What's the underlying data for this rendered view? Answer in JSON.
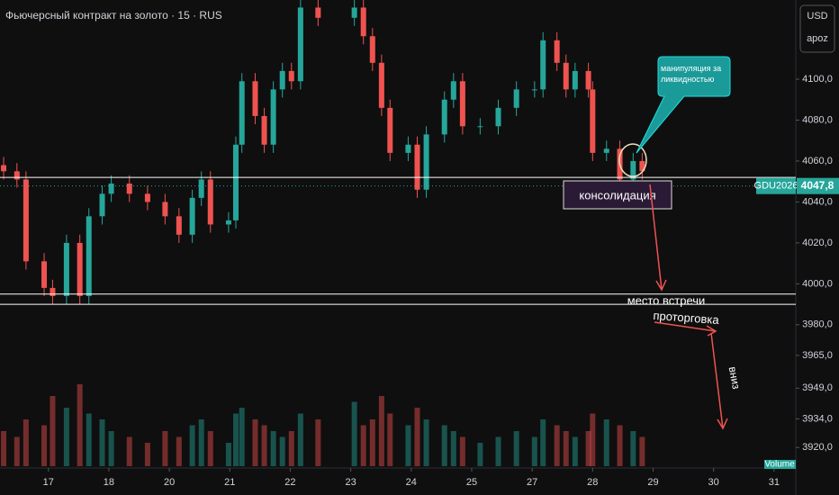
{
  "chart_data": {
    "type": "candlestick",
    "title": "Фьючерсный контракт на золото · 15 · RUS",
    "currency": "USD",
    "scale_mode": "apoz",
    "volume_label": "Volume",
    "symbol": "GDU2026",
    "last_price": {
      "value": 4047.8,
      "label": "4047,8"
    },
    "up_color": "#26a69a",
    "down_color": "#ef5350",
    "xlim": [
      -0.8,
      12.33
    ],
    "ylim": [
      3910,
      4138.7
    ],
    "vlim": [
      0,
      100
    ],
    "xticks": [
      {
        "value": 0,
        "label": "17"
      },
      {
        "value": 1,
        "label": "18"
      },
      {
        "value": 2,
        "label": "20"
      },
      {
        "value": 3,
        "label": "21"
      },
      {
        "value": 4,
        "label": "22"
      },
      {
        "value": 5,
        "label": "23"
      },
      {
        "value": 6,
        "label": "24"
      },
      {
        "value": 7,
        "label": "25"
      },
      {
        "value": 8,
        "label": "27"
      },
      {
        "value": 9,
        "label": "28"
      },
      {
        "value": 10,
        "label": "29"
      },
      {
        "value": 11,
        "label": "30"
      },
      {
        "value": 12,
        "label": "31"
      }
    ],
    "yticks": [
      {
        "value": 4100,
        "label": "4100,0"
      },
      {
        "value": 4080,
        "label": "4080,0"
      },
      {
        "value": 4060,
        "label": "4060,0"
      },
      {
        "value": 4040,
        "label": "4040,0"
      },
      {
        "value": 4020,
        "label": "4020,0"
      },
      {
        "value": 4000,
        "label": "4000,0"
      },
      {
        "value": 3980,
        "label": "3980,0"
      },
      {
        "value": 3965,
        "label": "3965,0"
      },
      {
        "value": 3949,
        "label": "3949,0"
      },
      {
        "value": 3934,
        "label": "3934,0"
      },
      {
        "value": 3920,
        "label": "3920,0"
      }
    ],
    "x": [
      -0.74,
      -0.52,
      -0.37,
      -0.07,
      0.07,
      0.3,
      0.52,
      0.67,
      0.89,
      1.04,
      1.34,
      1.64,
      1.93,
      2.16,
      2.38,
      2.53,
      2.68,
      2.98,
      3.1,
      3.2,
      3.42,
      3.57,
      3.72,
      3.87,
      4.02,
      4.17,
      4.46,
      5.06,
      5.21,
      5.36,
      5.51,
      5.65,
      5.95,
      6.1,
      6.25,
      6.55,
      6.7,
      6.85,
      7.14,
      7.44,
      7.74,
      8.04,
      8.18,
      8.41,
      8.56,
      8.71,
      8.93,
      9.0,
      9.23,
      9.45,
      9.67,
      9.82
    ],
    "open": [
      4058,
      4055,
      4051,
      4011,
      3998,
      3994,
      4020,
      3994,
      4033,
      4044,
      4049,
      4044,
      4040,
      4033,
      4024,
      4042,
      4051,
      4029,
      4031,
      4068,
      4099,
      4082,
      4068,
      4095,
      4104,
      4099,
      4135,
      4130,
      4135,
      4121,
      4108,
      4086,
      4064,
      4068,
      4046,
      4073,
      4090,
      4099,
      4077,
      4077,
      4086,
      4095,
      4095,
      4119,
      4108,
      4095,
      4104,
      4095,
      4064,
      4066,
      4051,
      4060
    ],
    "high": [
      4062,
      4059,
      4055,
      4015,
      4002,
      4024,
      4024,
      4037,
      4048,
      4053,
      4053,
      4048,
      4044,
      4037,
      4046,
      4055,
      4055,
      4035,
      4072,
      4103,
      4103,
      4086,
      4099,
      4108,
      4108,
      4139,
      4139,
      4139,
      4139,
      4125,
      4112,
      4090,
      4072,
      4072,
      4077,
      4094,
      4103,
      4103,
      4081,
      4090,
      4099,
      4099,
      4123,
      4123,
      4112,
      4108,
      4108,
      4099,
      4070,
      4070,
      4064,
      4064
    ],
    "low": [
      4051,
      4047,
      4007,
      3994,
      3990,
      3990,
      3990,
      3990,
      4029,
      4040,
      4040,
      4036,
      4029,
      4020,
      4020,
      4038,
      4025,
      4025,
      4027,
      4064,
      4078,
      4064,
      4064,
      4091,
      4095,
      4095,
      4126,
      4126,
      4117,
      4104,
      4082,
      4060,
      4060,
      4042,
      4042,
      4069,
      4086,
      4073,
      4073,
      4073,
      4082,
      4091,
      4091,
      4104,
      4091,
      4091,
      4091,
      4060,
      4060,
      4047,
      4047,
      4051
    ],
    "close": [
      4055,
      4051,
      4011,
      3998,
      3994,
      4020,
      3994,
      4033,
      4044,
      4049,
      4044,
      4040,
      4033,
      4024,
      4042,
      4051,
      4029,
      4031,
      4068,
      4099,
      4082,
      4068,
      4095,
      4104,
      4099,
      4135,
      4130,
      4135,
      4121,
      4108,
      4086,
      4064,
      4068,
      4046,
      4073,
      4090,
      4099,
      4077,
      4077,
      4086,
      4095,
      4095,
      4119,
      4108,
      4095,
      4104,
      4095,
      4064,
      4066,
      4051,
      4060,
      4055
    ],
    "volume": [
      30,
      25,
      40,
      35,
      60,
      50,
      70,
      45,
      40,
      30,
      25,
      20,
      30,
      25,
      35,
      40,
      30,
      20,
      45,
      50,
      40,
      35,
      30,
      25,
      30,
      45,
      40,
      55,
      35,
      40,
      60,
      45,
      35,
      50,
      40,
      35,
      30,
      25,
      20,
      25,
      30,
      25,
      40,
      35,
      30,
      25,
      30,
      45,
      40,
      35,
      30,
      25
    ],
    "levels": [
      4052,
      3995,
      3990
    ],
    "annotations": {
      "consolidation": "консолидация",
      "meeting": "место встречи",
      "range": "проторговка",
      "down": "вниз",
      "manipulation": "манипуляция за ликвидностью"
    }
  }
}
